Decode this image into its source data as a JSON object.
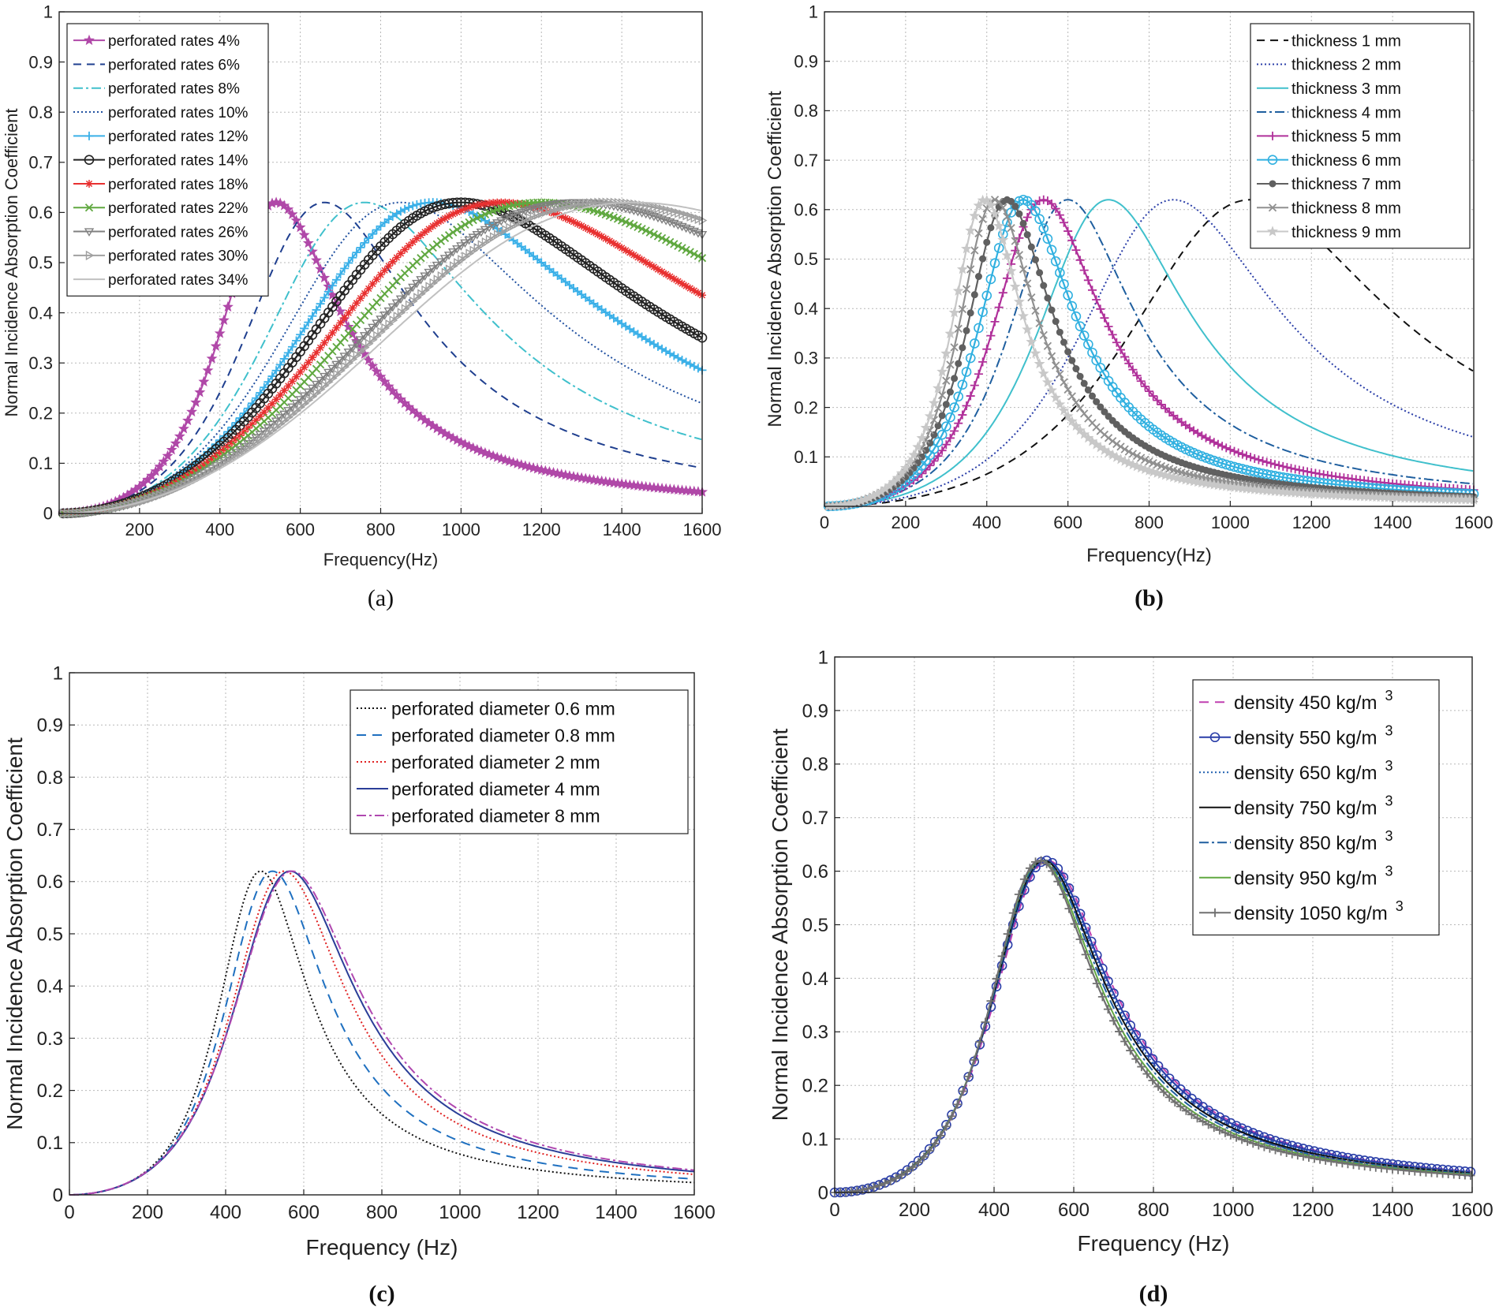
{
  "chart_data": [
    {
      "type": "line",
      "caption": "(a)",
      "xlabel": "Frequency(Hz)",
      "ylabel": "Normal Incidence Absorption Coefficient",
      "xlim": [
        0,
        1600
      ],
      "ylim": [
        0,
        1
      ],
      "xticks": [
        200,
        400,
        600,
        800,
        1000,
        1200,
        1400,
        1600
      ],
      "yticks": [
        0,
        0.1,
        0.2,
        0.3,
        0.4,
        0.5,
        0.6,
        0.7,
        0.8,
        0.9,
        1
      ],
      "grid": true,
      "legend_position": "top-left",
      "series": [
        {
          "name": "perforated rates 4%",
          "peak_x": 540,
          "peak_y": 0.62,
          "q": 1.4,
          "color": "#b048a8",
          "dash": "",
          "marker": "star"
        },
        {
          "name": "perforated rates 6%",
          "peak_x": 660,
          "peak_y": 0.62,
          "q": 1.2,
          "color": "#1f3f8f",
          "dash": "10,7",
          "marker": ""
        },
        {
          "name": "perforated rates 8%",
          "peak_x": 760,
          "peak_y": 0.62,
          "q": 1.1,
          "color": "#40c0cc",
          "dash": "12,4,3,4",
          "marker": ""
        },
        {
          "name": "perforated rates 10%",
          "peak_x": 850,
          "peak_y": 0.62,
          "q": 1.0,
          "color": "#2050a0",
          "dash": "2,3",
          "marker": ""
        },
        {
          "name": "perforated rates 12%",
          "peak_x": 930,
          "peak_y": 0.62,
          "q": 0.95,
          "color": "#3ab0e8",
          "dash": "",
          "marker": "plus"
        },
        {
          "name": "perforated rates 14%",
          "peak_x": 1000,
          "peak_y": 0.62,
          "q": 0.9,
          "color": "#222222",
          "dash": "",
          "marker": "circle"
        },
        {
          "name": "perforated rates 18%",
          "peak_x": 1100,
          "peak_y": 0.62,
          "q": 0.85,
          "color": "#e83030",
          "dash": "",
          "marker": "asterisk"
        },
        {
          "name": "perforated rates 22%",
          "peak_x": 1200,
          "peak_y": 0.62,
          "q": 0.8,
          "color": "#60a840",
          "dash": "",
          "marker": "x"
        },
        {
          "name": "perforated rates 26%",
          "peak_x": 1290,
          "peak_y": 0.62,
          "q": 0.78,
          "color": "#808080",
          "dash": "",
          "marker": "triangle-down"
        },
        {
          "name": "perforated rates 30%",
          "peak_x": 1360,
          "peak_y": 0.62,
          "q": 0.76,
          "color": "#a0a0a0",
          "dash": "",
          "marker": "triangle-right"
        },
        {
          "name": "perforated rates 34%",
          "peak_x": 1430,
          "peak_y": 0.62,
          "q": 0.74,
          "color": "#c0c0c0",
          "dash": "",
          "marker": ""
        }
      ]
    },
    {
      "type": "line",
      "caption": "(b)",
      "xlabel": "Frequency(Hz)",
      "ylabel": "Normal Incidence Absorption Coefficient",
      "xlim": [
        0,
        1600
      ],
      "ylim": [
        0,
        1
      ],
      "xticks": [
        0,
        200,
        400,
        600,
        800,
        1000,
        1200,
        1400,
        1600
      ],
      "yticks": [
        0.1,
        0.2,
        0.3,
        0.4,
        0.5,
        0.6,
        0.7,
        0.8,
        0.9,
        1
      ],
      "grid": true,
      "legend_position": "top-right",
      "series": [
        {
          "name": "thickness 1 mm",
          "peak_x": 1050,
          "peak_y": 0.62,
          "q": 1.3,
          "color": "#111111",
          "dash": "10,7",
          "marker": ""
        },
        {
          "name": "thickness 2 mm",
          "peak_x": 860,
          "peak_y": 0.62,
          "q": 1.4,
          "color": "#2a3ea8",
          "dash": "2,3",
          "marker": ""
        },
        {
          "name": "thickness 3 mm",
          "peak_x": 700,
          "peak_y": 0.62,
          "q": 1.5,
          "color": "#40c0cc",
          "dash": "",
          "marker": ""
        },
        {
          "name": "thickness 4 mm",
          "peak_x": 600,
          "peak_y": 0.62,
          "q": 1.55,
          "color": "#1f5f9f",
          "dash": "12,4,3,4",
          "marker": ""
        },
        {
          "name": "thickness 5 mm",
          "peak_x": 540,
          "peak_y": 0.62,
          "q": 1.6,
          "color": "#b0309a",
          "dash": "",
          "marker": "plus"
        },
        {
          "name": "thickness 6 mm",
          "peak_x": 490,
          "peak_y": 0.62,
          "q": 1.65,
          "color": "#30b0e0",
          "dash": "",
          "marker": "circle"
        },
        {
          "name": "thickness 7 mm",
          "peak_x": 450,
          "peak_y": 0.62,
          "q": 1.7,
          "color": "#606060",
          "dash": "",
          "marker": "dot"
        },
        {
          "name": "thickness 8 mm",
          "peak_x": 420,
          "peak_y": 0.62,
          "q": 1.75,
          "color": "#909090",
          "dash": "",
          "marker": "x"
        },
        {
          "name": "thickness 9 mm",
          "peak_x": 395,
          "peak_y": 0.62,
          "q": 1.8,
          "color": "#c8c8c8",
          "dash": "",
          "marker": "star"
        }
      ]
    },
    {
      "type": "line",
      "caption": "(c)",
      "xlabel": "Frequency (Hz)",
      "ylabel": "Normal Incidence Absorption Coefficient",
      "xlim": [
        0,
        1600
      ],
      "ylim": [
        0,
        1
      ],
      "xticks": [
        0,
        200,
        400,
        600,
        800,
        1000,
        1200,
        1400,
        1600
      ],
      "yticks": [
        0,
        0.1,
        0.2,
        0.3,
        0.4,
        0.5,
        0.6,
        0.7,
        0.8,
        0.9,
        1
      ],
      "grid": true,
      "legend_position": "top-right",
      "series": [
        {
          "name": "perforated diameter 0.6 mm",
          "peak_x": 490,
          "peak_y": 0.62,
          "q": 1.7,
          "color": "#111111",
          "dash": "2,3",
          "marker": ""
        },
        {
          "name": "perforated diameter 0.8 mm",
          "peak_x": 520,
          "peak_y": 0.62,
          "q": 1.6,
          "color": "#1f70c0",
          "dash": "12,8",
          "marker": ""
        },
        {
          "name": "perforated diameter 2 mm",
          "peak_x": 550,
          "peak_y": 0.62,
          "q": 1.5,
          "color": "#e02020",
          "dash": "2,3",
          "marker": ""
        },
        {
          "name": "perforated diameter 4 mm",
          "peak_x": 565,
          "peak_y": 0.62,
          "q": 1.45,
          "color": "#2a3e98",
          "dash": "",
          "marker": ""
        },
        {
          "name": "perforated diameter 8 mm",
          "peak_x": 570,
          "peak_y": 0.62,
          "q": 1.42,
          "color": "#b048b0",
          "dash": "12,4,3,4",
          "marker": ""
        }
      ]
    },
    {
      "type": "line",
      "caption": "(d)",
      "xlabel": "Frequency (Hz)",
      "ylabel": "Normal Incidence Absorption Coefficient",
      "xlim": [
        0,
        1600
      ],
      "ylim": [
        0,
        1
      ],
      "xticks": [
        0,
        200,
        400,
        600,
        800,
        1000,
        1200,
        1400,
        1600
      ],
      "yticks": [
        0,
        0.1,
        0.2,
        0.3,
        0.4,
        0.5,
        0.6,
        0.7,
        0.8,
        0.9,
        1
      ],
      "grid": true,
      "legend_position": "top-right",
      "series": [
        {
          "name": "density 450 kg/m",
          "sup": "3",
          "peak_x": 535,
          "peak_y": 0.62,
          "q": 1.45,
          "color": "#c040b0",
          "dash": "12,8",
          "marker": ""
        },
        {
          "name": "density 550 kg/m",
          "sup": "3",
          "peak_x": 530,
          "peak_y": 0.62,
          "q": 1.45,
          "color": "#2a3ea8",
          "dash": "",
          "marker": "circle"
        },
        {
          "name": "density 650 kg/m",
          "sup": "3",
          "peak_x": 528,
          "peak_y": 0.62,
          "q": 1.47,
          "color": "#2060b0",
          "dash": "2,3",
          "marker": ""
        },
        {
          "name": "density 750 kg/m",
          "sup": "3",
          "peak_x": 525,
          "peak_y": 0.62,
          "q": 1.48,
          "color": "#111111",
          "dash": "",
          "marker": ""
        },
        {
          "name": "density 850 kg/m",
          "sup": "3",
          "peak_x": 522,
          "peak_y": 0.62,
          "q": 1.5,
          "color": "#1f5f9f",
          "dash": "12,4,3,4",
          "marker": ""
        },
        {
          "name": "density 950 kg/m",
          "sup": "3",
          "peak_x": 518,
          "peak_y": 0.62,
          "q": 1.52,
          "color": "#60a840",
          "dash": "",
          "marker": ""
        },
        {
          "name": "density 1050 kg/m",
          "sup": "3",
          "peak_x": 515,
          "peak_y": 0.62,
          "q": 1.55,
          "color": "#707070",
          "dash": "",
          "marker": "plus"
        }
      ]
    }
  ]
}
